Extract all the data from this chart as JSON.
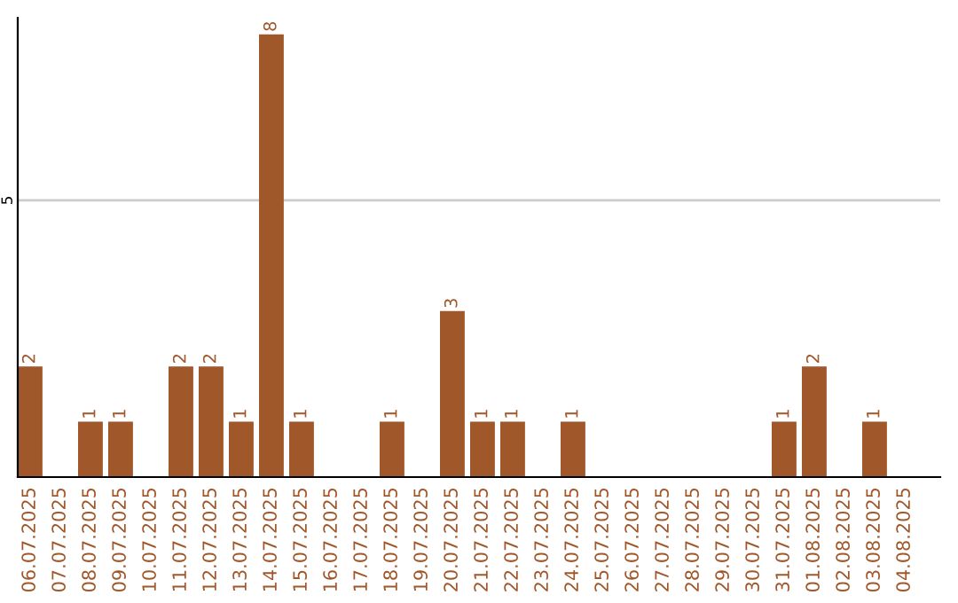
{
  "chart_data": {
    "type": "bar",
    "categories": [
      "06.07.2025",
      "07.07.2025",
      "08.07.2025",
      "09.07.2025",
      "10.07.2025",
      "11.07.2025",
      "12.07.2025",
      "13.07.2025",
      "14.07.2025",
      "15.07.2025",
      "16.07.2025",
      "17.07.2025",
      "18.07.2025",
      "19.07.2025",
      "20.07.2025",
      "21.07.2025",
      "22.07.2025",
      "23.07.2025",
      "24.07.2025",
      "25.07.2025",
      "26.07.2025",
      "27.07.2025",
      "28.07.2025",
      "29.07.2025",
      "30.07.2025",
      "31.07.2025",
      "01.08.2025",
      "02.08.2025",
      "03.08.2025",
      "04.08.2025"
    ],
    "values": [
      2,
      0,
      1,
      1,
      0,
      2,
      2,
      1,
      8,
      1,
      0,
      0,
      1,
      0,
      3,
      1,
      1,
      0,
      1,
      0,
      0,
      0,
      0,
      0,
      0,
      1,
      2,
      0,
      1,
      0
    ],
    "value_labels": [
      "2",
      null,
      "1",
      "1",
      null,
      "2",
      "2",
      "1",
      "8",
      "1",
      null,
      null,
      "1",
      null,
      "3",
      "1",
      "1",
      null,
      "1",
      null,
      null,
      null,
      null,
      null,
      null,
      "1",
      "2",
      null,
      "1",
      null
    ],
    "color": "#a0572a",
    "ylim": [
      0,
      8.3
    ],
    "yticks": [
      5
    ],
    "grid": "y"
  }
}
